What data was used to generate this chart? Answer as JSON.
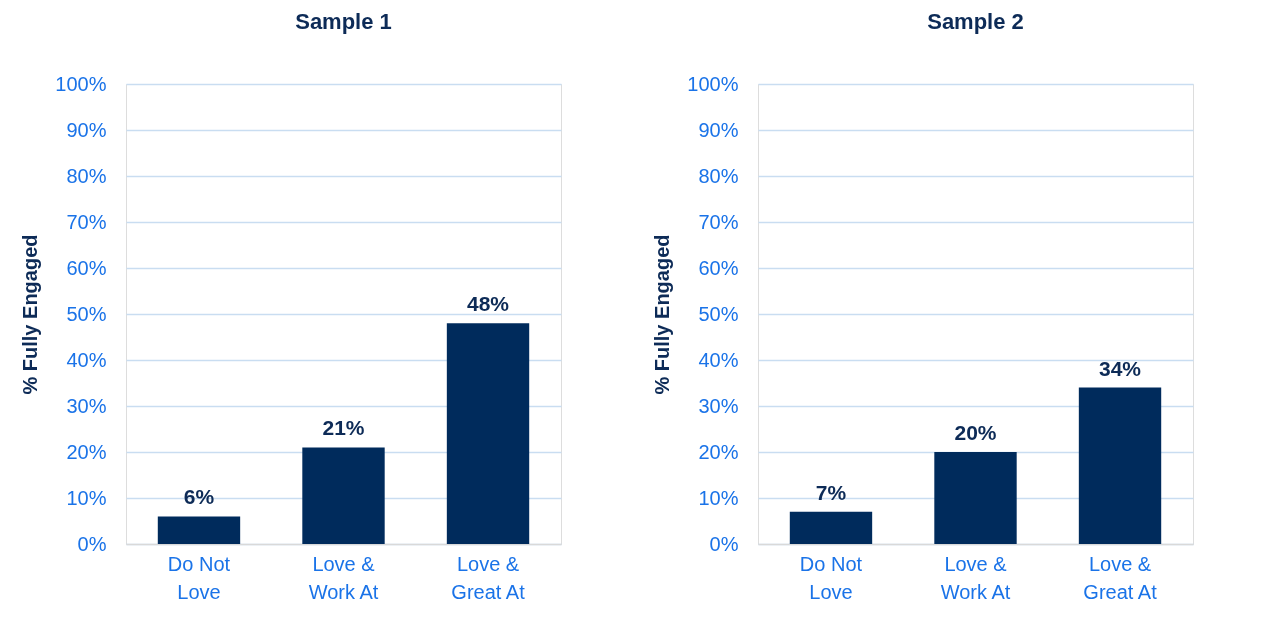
{
  "chart_data": [
    {
      "type": "bar",
      "title": "Sample 1",
      "ylabel": "% Fully Engaged",
      "categories": [
        "Do Not\nLove",
        "Love &\nWork At",
        "Love &\nGreat At"
      ],
      "values": [
        6,
        21,
        48
      ],
      "color": "#002b5c",
      "value_labels": [
        "6%",
        "21%",
        "48%"
      ],
      "ylim": [
        0,
        100
      ],
      "yticks": [
        {
          "value": 0,
          "label": "0%"
        },
        {
          "value": 10,
          "label": "10%"
        },
        {
          "value": 20,
          "label": "20%"
        },
        {
          "value": 30,
          "label": "30%"
        },
        {
          "value": 40,
          "label": "40%"
        },
        {
          "value": 50,
          "label": "50%"
        },
        {
          "value": 60,
          "label": "60%"
        },
        {
          "value": 70,
          "label": "70%"
        },
        {
          "value": 80,
          "label": "80%"
        },
        {
          "value": 90,
          "label": "90%"
        },
        {
          "value": 100,
          "label": "100%"
        }
      ],
      "grid": "y"
    },
    {
      "type": "bar",
      "title": "Sample 2",
      "ylabel": "% Fully Engaged",
      "categories": [
        "Do Not\nLove",
        "Love &\nWork At",
        "Love &\nGreat At"
      ],
      "values": [
        7,
        20,
        34
      ],
      "color": "#002b5c",
      "value_labels": [
        "7%",
        "20%",
        "34%"
      ],
      "ylim": [
        0,
        100
      ],
      "yticks": [
        {
          "value": 0,
          "label": "0%"
        },
        {
          "value": 10,
          "label": "10%"
        },
        {
          "value": 20,
          "label": "20%"
        },
        {
          "value": 30,
          "label": "30%"
        },
        {
          "value": 40,
          "label": "40%"
        },
        {
          "value": 50,
          "label": "50%"
        },
        {
          "value": 60,
          "label": "60%"
        },
        {
          "value": 70,
          "label": "70%"
        },
        {
          "value": 80,
          "label": "80%"
        },
        {
          "value": 90,
          "label": "90%"
        },
        {
          "value": 100,
          "label": "100%"
        }
      ],
      "grid": "y"
    }
  ]
}
